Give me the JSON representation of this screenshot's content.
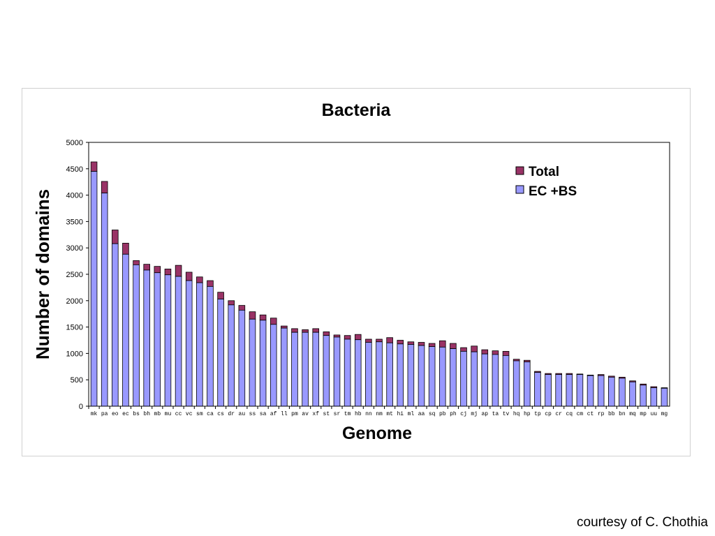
{
  "chart_data": {
    "type": "bar",
    "stacked": true,
    "title": "Bacteria",
    "xlabel": "Genome",
    "ylabel": "Number of domains",
    "ylim": [
      0,
      5000
    ],
    "yticks": [
      0,
      500,
      1000,
      1500,
      2000,
      2500,
      3000,
      3500,
      4000,
      4500,
      5000
    ],
    "grid": false,
    "legend_position": "top-right",
    "categories": [
      "mk",
      "pa",
      "eo",
      "ec",
      "bs",
      "bh",
      "mb",
      "mu",
      "cc",
      "vc",
      "sm",
      "ca",
      "cs",
      "dr",
      "au",
      "ss",
      "sa",
      "af",
      "ll",
      "pm",
      "av",
      "xf",
      "st",
      "sr",
      "tm",
      "hb",
      "nn",
      "nm",
      "mt",
      "hi",
      "ml",
      "aa",
      "sq",
      "pb",
      "ph",
      "cj",
      "mj",
      "ap",
      "ta",
      "tv",
      "hq",
      "hp",
      "tp",
      "cp",
      "cr",
      "cq",
      "cm",
      "ct",
      "rp",
      "bb",
      "bn",
      "mq",
      "mp",
      "uu",
      "mg"
    ],
    "series": [
      {
        "name": "EC +BS",
        "color": "#9999ff",
        "values": [
          4450,
          4040,
          3080,
          2880,
          2680,
          2580,
          2530,
          2490,
          2460,
          2380,
          2340,
          2270,
          2030,
          1920,
          1820,
          1650,
          1630,
          1550,
          1480,
          1400,
          1400,
          1400,
          1340,
          1310,
          1270,
          1260,
          1210,
          1220,
          1200,
          1180,
          1170,
          1150,
          1130,
          1120,
          1090,
          1040,
          1030,
          990,
          980,
          960,
          860,
          840,
          640,
          600,
          600,
          600,
          600,
          580,
          580,
          550,
          530,
          460,
          400,
          350,
          340
        ]
      },
      {
        "name": "Total",
        "color": "#993366",
        "values": [
          4630,
          4260,
          3340,
          3090,
          2760,
          2690,
          2650,
          2600,
          2670,
          2540,
          2450,
          2380,
          2160,
          2000,
          1910,
          1790,
          1730,
          1670,
          1520,
          1470,
          1450,
          1470,
          1410,
          1350,
          1340,
          1360,
          1270,
          1270,
          1300,
          1250,
          1220,
          1210,
          1190,
          1240,
          1190,
          1110,
          1140,
          1070,
          1050,
          1040,
          890,
          870,
          660,
          620,
          620,
          620,
          610,
          590,
          600,
          570,
          550,
          480,
          420,
          370,
          350
        ]
      }
    ]
  },
  "colors": {
    "ec_bs": "#9999ff",
    "total": "#993366",
    "axis": "#000000"
  },
  "footer": {
    "credit": "courtesy of C. Chothia"
  }
}
